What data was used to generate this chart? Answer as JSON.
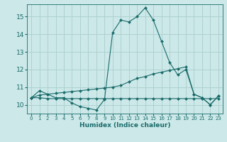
{
  "xlabel": "Humidex (Indice chaleur)",
  "background_color": "#cce8e8",
  "grid_color": "#aacece",
  "line_color": "#1a6b6b",
  "xlim": [
    -0.5,
    23.5
  ],
  "ylim": [
    9.5,
    15.7
  ],
  "yticks": [
    10,
    11,
    12,
    13,
    14,
    15
  ],
  "xticks": [
    0,
    1,
    2,
    3,
    4,
    5,
    6,
    7,
    8,
    9,
    10,
    11,
    12,
    13,
    14,
    15,
    16,
    17,
    18,
    19,
    20,
    21,
    22,
    23
  ],
  "x": [
    0,
    1,
    2,
    3,
    4,
    5,
    6,
    7,
    8,
    9,
    10,
    11,
    12,
    13,
    14,
    15,
    16,
    17,
    18,
    19,
    20,
    21,
    22,
    23
  ],
  "line1_y": [
    10.4,
    10.8,
    10.6,
    10.4,
    10.4,
    10.1,
    9.9,
    9.8,
    9.7,
    10.3,
    14.1,
    14.8,
    14.7,
    15.0,
    15.5,
    14.8,
    13.6,
    12.4,
    11.7,
    12.0,
    10.6,
    10.4,
    10.0,
    10.5
  ],
  "line2_y": [
    10.4,
    10.55,
    10.6,
    10.65,
    10.7,
    10.75,
    10.8,
    10.85,
    10.9,
    10.95,
    11.0,
    11.1,
    11.3,
    11.5,
    11.6,
    11.75,
    11.85,
    11.95,
    12.05,
    12.15,
    10.6,
    10.4,
    10.0,
    10.5
  ],
  "line3_y": [
    10.4,
    10.4,
    10.35,
    10.35,
    10.35,
    10.35,
    10.35,
    10.35,
    10.35,
    10.35,
    10.35,
    10.35,
    10.35,
    10.35,
    10.35,
    10.35,
    10.35,
    10.35,
    10.35,
    10.35,
    10.35,
    10.35,
    10.35,
    10.35
  ]
}
